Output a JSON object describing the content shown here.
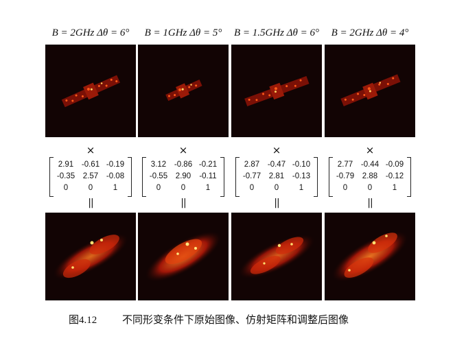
{
  "panels": [
    {
      "title": "B = 2GHz  Δθ = 6°",
      "matrix": [
        [
          "2.91",
          "-0.61",
          "-0.19"
        ],
        [
          "-0.35",
          "2.57",
          "-0.08"
        ],
        [
          "0",
          "0",
          "1"
        ]
      ]
    },
    {
      "title": "B = 1GHz  Δθ = 5°",
      "matrix": [
        [
          "3.12",
          "-0.86",
          "-0.21"
        ],
        [
          "-0.55",
          "2.90",
          "-0.11"
        ],
        [
          "0",
          "0",
          "1"
        ]
      ]
    },
    {
      "title": "B = 1.5GHz  Δθ = 6°",
      "matrix": [
        [
          "2.87",
          "-0.47",
          "-0.10"
        ],
        [
          "-0.77",
          "2.81",
          "-0.13"
        ],
        [
          "0",
          "0",
          "1"
        ]
      ]
    },
    {
      "title": "B = 2GHz  Δθ = 4°",
      "matrix": [
        [
          "2.77",
          "-0.44",
          "-0.09"
        ],
        [
          "-0.79",
          "2.88",
          "-0.12"
        ],
        [
          "0",
          "0",
          "1"
        ]
      ]
    }
  ],
  "symbols": {
    "times": "×",
    "equals": "||"
  },
  "caption": {
    "number": "图4.12",
    "text": "不同形变条件下原始图像、仿射矩阵和调整后图像"
  }
}
